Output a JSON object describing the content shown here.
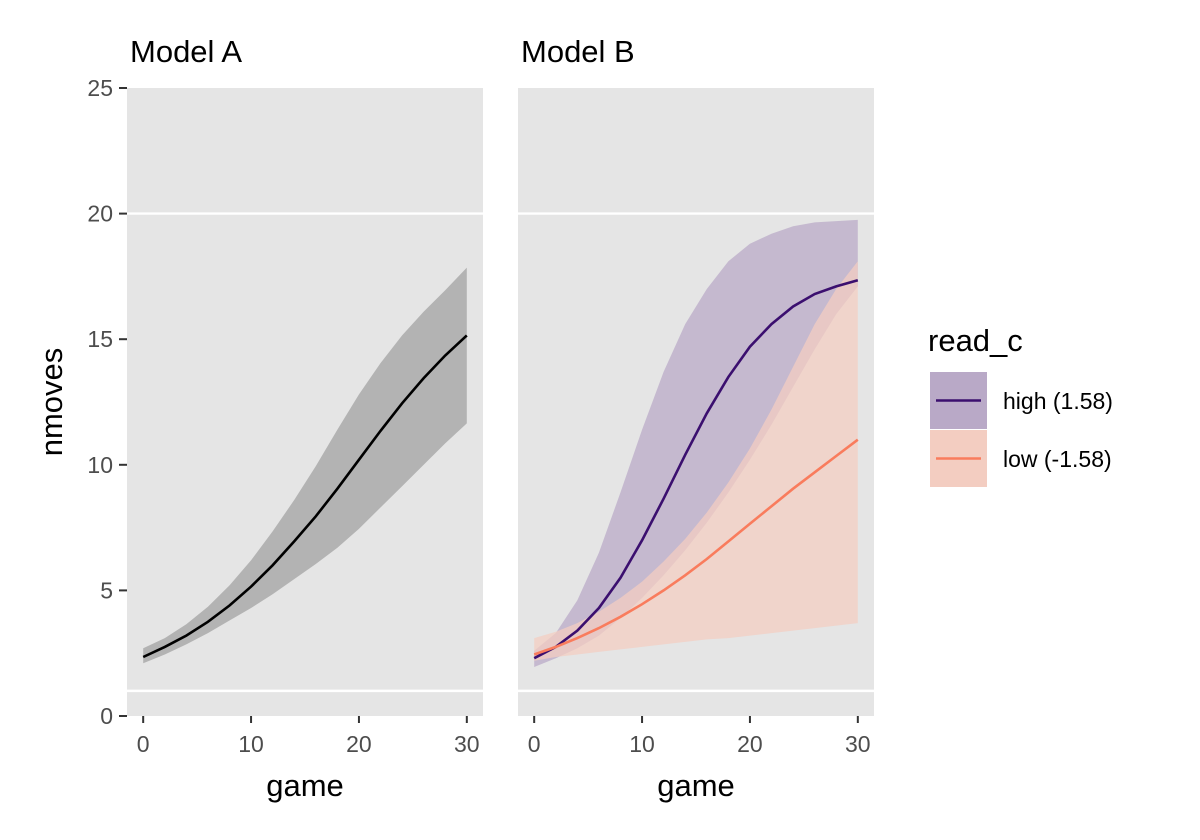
{
  "chart_data": {
    "type": "line",
    "facets": [
      {
        "title": "Model A",
        "x": [
          0,
          2,
          4,
          6,
          8,
          10,
          12,
          14,
          16,
          18,
          20,
          22,
          24,
          26,
          28,
          30
        ],
        "series": [
          {
            "color": "#000000",
            "fill": "#b3b3b3",
            "y": [
              2.35,
              2.75,
              3.2,
              3.75,
              4.4,
              5.15,
              6.0,
              6.95,
              7.95,
              9.05,
              10.2,
              11.35,
              12.45,
              13.45,
              14.35,
              15.15
            ],
            "lower": [
              2.1,
              2.45,
              2.85,
              3.3,
              3.8,
              4.3,
              4.85,
              5.45,
              6.05,
              6.7,
              7.45,
              8.3,
              9.15,
              10.0,
              10.85,
              11.65
            ],
            "upper": [
              2.7,
              3.1,
              3.65,
              4.35,
              5.2,
              6.2,
              7.35,
              8.6,
              9.95,
              11.4,
              12.8,
              14.05,
              15.15,
              16.1,
              16.95,
              17.85
            ]
          }
        ]
      },
      {
        "title": "Model B",
        "x": [
          0,
          2,
          4,
          6,
          8,
          10,
          12,
          14,
          16,
          18,
          20,
          22,
          24,
          26,
          28,
          30
        ],
        "series": [
          {
            "name": "high (1.58)",
            "color": "#3b0f6f",
            "fill": "#b9a9c7",
            "y": [
              2.3,
              2.75,
              3.4,
              4.3,
              5.5,
              7.0,
              8.65,
              10.4,
              12.05,
              13.5,
              14.7,
              15.6,
              16.3,
              16.8,
              17.1,
              17.35
            ],
            "lower": [
              1.95,
              2.3,
              2.7,
              3.2,
              3.9,
              4.7,
              5.6,
              6.6,
              7.7,
              8.9,
              10.2,
              11.6,
              13.1,
              14.6,
              16.0,
              17.1
            ],
            "upper": [
              2.6,
              3.3,
              4.6,
              6.5,
              8.9,
              11.4,
              13.7,
              15.6,
              17.0,
              18.1,
              18.8,
              19.2,
              19.5,
              19.65,
              19.7,
              19.75
            ]
          },
          {
            "name": "low (-1.58)",
            "color": "#f97c5d",
            "fill": "#f3cdc1",
            "y": [
              2.45,
              2.75,
              3.1,
              3.5,
              3.95,
              4.45,
              5.0,
              5.6,
              6.25,
              6.95,
              7.65,
              8.35,
              9.05,
              9.7,
              10.35,
              11.0
            ],
            "lower": [
              2.2,
              2.35,
              2.45,
              2.55,
              2.65,
              2.75,
              2.85,
              2.95,
              3.05,
              3.1,
              3.2,
              3.3,
              3.4,
              3.5,
              3.6,
              3.7
            ],
            "upper": [
              3.1,
              3.35,
              3.7,
              4.15,
              4.7,
              5.35,
              6.15,
              7.05,
              8.1,
              9.3,
              10.65,
              12.2,
              13.9,
              15.6,
              17.0,
              18.1
            ]
          }
        ]
      }
    ],
    "xlabel": "game",
    "ylabel": "nmoves",
    "xlim": [
      -1.5,
      31.5
    ],
    "ylim": [
      0,
      25
    ],
    "xticks": [
      0,
      10,
      20,
      30
    ],
    "yticks": [
      0,
      5,
      10,
      15,
      20,
      25
    ],
    "grid_lines_y": [
      1,
      20
    ],
    "legend": {
      "title": "read_c",
      "position": "right",
      "entries": [
        "high (1.58)",
        "low (-1.58)"
      ]
    },
    "background": "#e5e5e5",
    "grid_color": "#ffffff"
  }
}
